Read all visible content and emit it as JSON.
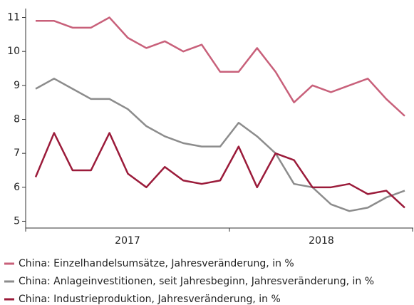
{
  "chart_data": {
    "type": "line",
    "categories": [
      null,
      null,
      null,
      null,
      null,
      null,
      null,
      null,
      null,
      null,
      null,
      null,
      null,
      null,
      null,
      null,
      null,
      null,
      null,
      null,
      null
    ],
    "x_groups": [
      "2017",
      "2018"
    ],
    "series": [
      {
        "name": "China: Einzelhandelsumsätze, Jahresveränderung, in %",
        "color": "#c8607a",
        "values": [
          10.9,
          10.9,
          10.7,
          10.7,
          11.0,
          10.4,
          10.1,
          10.3,
          10.0,
          10.2,
          9.4,
          9.4,
          10.1,
          9.4,
          8.5,
          9.0,
          8.8,
          9.0,
          9.2,
          8.6,
          8.1
        ]
      },
      {
        "name": "China: Anlageinvestitionen, seit Jahresbeginn, Jahresveränderung, in %",
        "color": "#8c8c8c",
        "values": [
          8.9,
          9.2,
          8.9,
          8.6,
          8.6,
          8.3,
          7.8,
          7.5,
          7.3,
          7.2,
          7.2,
          7.9,
          7.5,
          7.0,
          6.1,
          6.0,
          5.5,
          5.3,
          5.4,
          5.7,
          5.9
        ]
      },
      {
        "name": "China: Industrieproduktion, Jahresveränderung, in %",
        "color": "#9b1b3a",
        "values": [
          6.3,
          7.6,
          6.5,
          6.5,
          7.6,
          6.4,
          6.0,
          6.6,
          6.2,
          6.1,
          6.2,
          7.2,
          6.0,
          7.0,
          6.8,
          6.0,
          6.0,
          6.1,
          5.8,
          5.9,
          5.4
        ]
      }
    ],
    "ylim": [
      4.8,
      11.2
    ],
    "yticks": [
      5,
      6,
      7,
      8,
      9,
      10,
      11
    ],
    "legend": "bottom"
  }
}
